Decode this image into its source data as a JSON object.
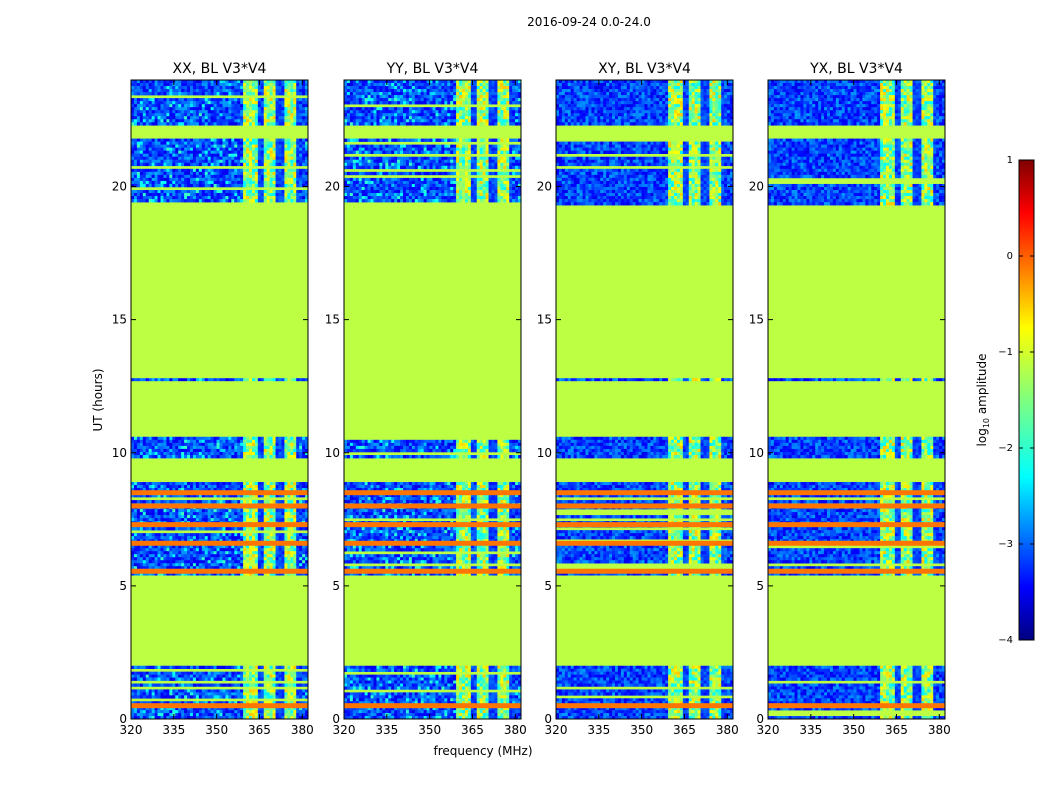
{
  "figure": {
    "suptitle": "2016-09-24 0.0-24.0",
    "xlabel": "frequency (MHz)",
    "ylabel": "UT (hours)"
  },
  "colorbar": {
    "label_prefix": "log",
    "label_sub": "10",
    "label_suffix": " amplitude",
    "ticks": [
      1,
      0,
      -1,
      -2,
      -3,
      -4
    ],
    "tick_labels": [
      "1",
      "0",
      "−1",
      "−2",
      "−3",
      "−4"
    ],
    "range": [
      -4,
      1
    ],
    "colormap": "jet"
  },
  "chart_data": [
    {
      "type": "heatmap",
      "title": "XX, BL V3*V4",
      "xlim": [
        320,
        382
      ],
      "ylim": [
        0,
        24
      ],
      "xticks": [
        320,
        335,
        350,
        365,
        380
      ],
      "yticks": [
        0,
        5,
        10,
        15,
        20
      ],
      "xlabel": "frequency (MHz)",
      "ylabel": "UT (hours)",
      "data_windows_hours": [
        [
          0.0,
          2.0
        ],
        [
          5.4,
          8.9
        ],
        [
          9.8,
          10.6
        ],
        [
          12.7,
          12.8
        ],
        [
          19.3,
          21.8
        ],
        [
          22.3,
          24.0
        ]
      ],
      "flagged_value_log10": -1.2,
      "bright_band_MHz": [
        359,
        378
      ],
      "bright_rows_hours": [
        0.5,
        5.55,
        6.6,
        7.3,
        8.0,
        8.5
      ]
    },
    {
      "type": "heatmap",
      "title": "YY, BL V3*V4",
      "xlim": [
        320,
        382
      ],
      "ylim": [
        0,
        24
      ],
      "xticks": [
        320,
        335,
        350,
        365,
        380
      ],
      "yticks": [
        0,
        5,
        10,
        15,
        20
      ],
      "data_windows_hours": [
        [
          0.0,
          2.0
        ],
        [
          5.4,
          8.9
        ],
        [
          9.8,
          10.6
        ],
        [
          12.7,
          12.8
        ],
        [
          19.3,
          21.8
        ],
        [
          22.3,
          24.0
        ]
      ],
      "flagged_value_log10": -1.2,
      "bright_band_MHz": [
        359,
        378
      ],
      "bright_rows_hours": [
        0.5,
        5.55,
        6.6,
        7.3,
        8.0,
        8.5
      ]
    },
    {
      "type": "heatmap",
      "title": "XY, BL V3*V4",
      "xlim": [
        320,
        382
      ],
      "ylim": [
        0,
        24
      ],
      "xticks": [
        320,
        335,
        350,
        365,
        380
      ],
      "yticks": [
        0,
        5,
        10,
        15,
        20
      ],
      "data_windows_hours": [
        [
          0.0,
          2.0
        ],
        [
          5.4,
          8.9
        ],
        [
          9.8,
          10.6
        ],
        [
          12.7,
          12.8
        ],
        [
          19.3,
          21.8
        ],
        [
          22.3,
          24.0
        ]
      ],
      "flagged_value_log10": -1.2,
      "bright_band_MHz": [
        359,
        378
      ],
      "bright_rows_hours": [
        0.5,
        5.55,
        6.6,
        7.3,
        8.0,
        8.5
      ]
    },
    {
      "type": "heatmap",
      "title": "YX, BL V3*V4",
      "xlim": [
        320,
        382
      ],
      "ylim": [
        0,
        24
      ],
      "xticks": [
        320,
        335,
        350,
        365,
        380
      ],
      "yticks": [
        0,
        5,
        10,
        15,
        20
      ],
      "data_windows_hours": [
        [
          0.0,
          2.0
        ],
        [
          5.4,
          8.9
        ],
        [
          9.8,
          10.6
        ],
        [
          12.7,
          12.8
        ],
        [
          19.3,
          21.8
        ],
        [
          22.3,
          24.0
        ]
      ],
      "flagged_value_log10": -1.2,
      "bright_band_MHz": [
        359,
        378
      ],
      "bright_rows_hours": [
        0.5,
        5.55,
        6.6,
        7.3,
        8.0,
        8.5
      ]
    }
  ]
}
